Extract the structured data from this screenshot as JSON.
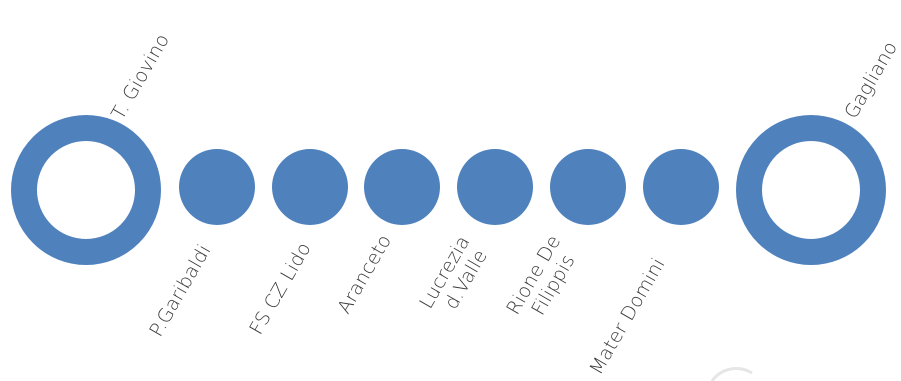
{
  "line": {
    "color": "#4f81bd",
    "terminus_fill": "#ffffff",
    "stations": [
      {
        "label_lines": [
          "T. Giovino"
        ],
        "kind": "terminus",
        "label_side": "above"
      },
      {
        "label_lines": [
          "P.Garibaldi"
        ],
        "kind": "stop",
        "label_side": "below"
      },
      {
        "label_lines": [
          "FS CZ Lido"
        ],
        "kind": "stop",
        "label_side": "below"
      },
      {
        "label_lines": [
          "Aranceto"
        ],
        "kind": "stop",
        "label_side": "below"
      },
      {
        "label_lines": [
          "Lucrezia",
          "d.Valle"
        ],
        "kind": "stop",
        "label_side": "below"
      },
      {
        "label_lines": [
          "Rione De",
          "Filippis"
        ],
        "kind": "stop",
        "label_side": "below"
      },
      {
        "label_lines": [
          "Mater Domini"
        ],
        "kind": "stop",
        "label_side": "below"
      },
      {
        "label_lines": [
          "Gagliano"
        ],
        "kind": "terminus",
        "label_side": "above"
      }
    ]
  }
}
